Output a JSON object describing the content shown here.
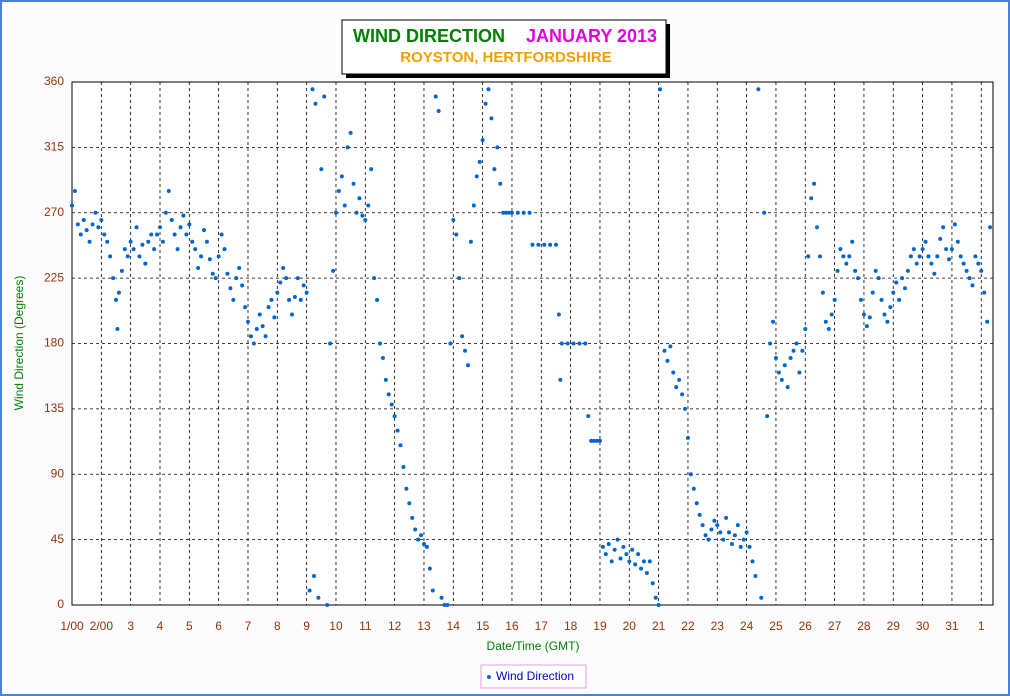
{
  "chart_data": {
    "type": "scatter",
    "title": "WIND DIRECTION",
    "title_month": "JANUARY 2013",
    "subtitle": "ROYSTON, HERTFORDSHIRE",
    "xlabel": "Date/Time (GMT)",
    "ylabel": "Wind Direction (Degrees)",
    "xlim": [
      1,
      32.4
    ],
    "ylim": [
      0,
      360
    ],
    "xticks": [
      {
        "value": 1,
        "label": "1/00"
      },
      {
        "value": 2,
        "label": "2/00"
      },
      3,
      4,
      5,
      6,
      7,
      8,
      9,
      10,
      11,
      12,
      13,
      14,
      15,
      16,
      17,
      18,
      19,
      20,
      21,
      22,
      23,
      24,
      25,
      26,
      27,
      28,
      29,
      30,
      31,
      {
        "value": 32,
        "label": "1"
      }
    ],
    "yticks": [
      0,
      45,
      90,
      135,
      180,
      225,
      270,
      315,
      360
    ],
    "grid": true,
    "legend": "bottom",
    "x": [
      1.0,
      1.1,
      1.2,
      1.3,
      1.4,
      1.5,
      1.6,
      1.7,
      1.8,
      1.9,
      2.0,
      2.1,
      2.2,
      2.3,
      2.4,
      2.5,
      2.55,
      2.6,
      2.7,
      2.8,
      2.9,
      3.0,
      3.1,
      3.2,
      3.3,
      3.4,
      3.5,
      3.6,
      3.7,
      3.8,
      3.9,
      4.0,
      4.1,
      4.2,
      4.3,
      4.4,
      4.5,
      4.6,
      4.7,
      4.8,
      4.9,
      5.0,
      5.1,
      5.2,
      5.3,
      5.4,
      5.5,
      5.6,
      5.7,
      5.8,
      5.9,
      6.0,
      6.1,
      6.2,
      6.3,
      6.4,
      6.5,
      6.6,
      6.7,
      6.8,
      6.9,
      7.0,
      7.1,
      7.2,
      7.3,
      7.4,
      7.5,
      7.6,
      7.7,
      7.8,
      7.9,
      8.0,
      8.1,
      8.2,
      8.3,
      8.4,
      8.5,
      8.6,
      8.7,
      8.8,
      8.9,
      9.0,
      9.1,
      9.2,
      9.25,
      9.3,
      9.4,
      9.5,
      9.6,
      9.7,
      9.8,
      9.9,
      10.0,
      10.1,
      10.2,
      10.3,
      10.4,
      10.5,
      10.6,
      10.7,
      10.8,
      10.9,
      11.0,
      11.1,
      11.2,
      11.3,
      11.4,
      11.5,
      11.6,
      11.7,
      11.8,
      11.9,
      12.0,
      12.1,
      12.2,
      12.3,
      12.4,
      12.5,
      12.6,
      12.7,
      12.8,
      12.9,
      13.0,
      13.1,
      13.2,
      13.3,
      13.4,
      13.5,
      13.6,
      13.7,
      13.8,
      13.9,
      14.0,
      14.1,
      14.2,
      14.3,
      14.4,
      14.5,
      14.6,
      14.7,
      14.8,
      14.9,
      15.0,
      15.1,
      15.2,
      15.3,
      15.4,
      15.5,
      15.6,
      15.7,
      15.8,
      15.9,
      16.0,
      16.2,
      16.4,
      16.6,
      16.7,
      16.9,
      17.1,
      17.3,
      17.5,
      17.6,
      17.65,
      17.7,
      17.9,
      18.1,
      18.3,
      18.5,
      18.6,
      18.7,
      18.8,
      18.9,
      19.0,
      19.1,
      19.2,
      19.3,
      19.4,
      19.5,
      19.6,
      19.7,
      19.8,
      19.9,
      20.0,
      20.1,
      20.2,
      20.3,
      20.4,
      20.5,
      20.6,
      20.7,
      20.8,
      20.9,
      21.0,
      21.05,
      21.2,
      21.3,
      21.4,
      21.5,
      21.6,
      21.7,
      21.8,
      21.9,
      22.0,
      22.1,
      22.2,
      22.3,
      22.4,
      22.5,
      22.6,
      22.7,
      22.8,
      22.9,
      23.0,
      23.1,
      23.2,
      23.3,
      23.4,
      23.5,
      23.6,
      23.7,
      23.8,
      23.9,
      24.0,
      24.1,
      24.2,
      24.3,
      24.4,
      24.5,
      24.6,
      24.7,
      24.8,
      24.9,
      25.0,
      25.1,
      25.2,
      25.3,
      25.4,
      25.5,
      25.6,
      25.7,
      25.8,
      25.9,
      26.0,
      26.1,
      26.2,
      26.3,
      26.4,
      26.5,
      26.6,
      26.7,
      26.8,
      26.9,
      27.0,
      27.1,
      27.2,
      27.3,
      27.4,
      27.5,
      27.6,
      27.7,
      27.8,
      27.9,
      28.0,
      28.1,
      28.2,
      28.3,
      28.4,
      28.5,
      28.6,
      28.7,
      28.8,
      28.9,
      29.0,
      29.1,
      29.2,
      29.3,
      29.4,
      29.5,
      29.6,
      29.7,
      29.8,
      29.9,
      30.0,
      30.1,
      30.2,
      30.3,
      30.4,
      30.5,
      30.6,
      30.7,
      30.8,
      30.9,
      31.0,
      31.1,
      31.2,
      31.3,
      31.4,
      31.5,
      31.6,
      31.7,
      31.8,
      31.9,
      32.0,
      32.1,
      32.2,
      32.3
    ],
    "series": [
      {
        "name": "Wind Direction",
        "color": "#0066cc",
        "values": [
          275,
          285,
          262,
          255,
          265,
          258,
          250,
          262,
          270,
          260,
          265,
          255,
          250,
          240,
          225,
          210,
          190,
          215,
          230,
          245,
          240,
          250,
          245,
          260,
          240,
          248,
          235,
          250,
          255,
          245,
          255,
          260,
          250,
          270,
          285,
          265,
          255,
          245,
          260,
          268,
          255,
          262,
          250,
          245,
          232,
          240,
          258,
          250,
          238,
          228,
          225,
          240,
          255,
          245,
          228,
          218,
          210,
          225,
          232,
          220,
          205,
          195,
          185,
          180,
          190,
          200,
          192,
          185,
          205,
          210,
          198,
          215,
          222,
          232,
          225,
          210,
          200,
          212,
          225,
          210,
          220,
          215,
          10,
          355,
          20,
          345,
          5,
          300,
          350,
          0,
          180,
          230,
          270,
          285,
          295,
          275,
          315,
          325,
          290,
          270,
          280,
          268,
          265,
          275,
          300,
          225,
          210,
          180,
          170,
          155,
          145,
          138,
          130,
          120,
          110,
          95,
          80,
          70,
          60,
          52,
          45,
          48,
          42,
          40,
          25,
          10,
          350,
          340,
          5,
          0,
          0,
          180,
          265,
          255,
          225,
          185,
          175,
          165,
          250,
          275,
          295,
          305,
          320,
          345,
          355,
          335,
          300,
          315,
          290,
          270,
          270,
          270,
          270,
          270,
          270,
          270,
          248,
          248,
          248,
          248,
          248,
          200,
          155,
          180,
          180,
          180,
          180,
          180,
          130,
          113,
          113,
          113,
          113,
          40,
          35,
          42,
          30,
          38,
          45,
          32,
          40,
          35,
          30,
          38,
          28,
          35,
          25,
          30,
          22,
          30,
          15,
          5,
          0,
          355,
          175,
          168,
          178,
          160,
          150,
          155,
          145,
          135,
          115,
          90,
          80,
          70,
          62,
          55,
          48,
          45,
          52,
          58,
          55,
          50,
          45,
          60,
          50,
          42,
          48,
          55,
          40,
          45,
          50,
          40,
          30,
          20,
          355,
          5,
          270,
          130,
          180,
          195,
          170,
          160,
          155,
          165,
          150,
          170,
          175,
          180,
          160,
          175,
          190,
          240,
          280,
          290,
          260,
          240,
          215,
          195,
          190,
          200,
          210,
          230,
          245,
          240,
          235,
          240,
          250,
          230,
          225,
          210,
          200,
          192,
          198,
          215,
          230,
          225,
          210,
          200,
          195,
          205,
          215,
          222,
          210,
          225,
          218,
          230,
          240,
          245,
          235,
          240,
          245,
          250,
          240,
          235,
          228,
          240,
          252,
          260,
          245,
          238,
          245,
          262,
          250,
          240,
          235,
          230,
          225,
          220,
          240,
          235,
          230,
          215,
          195,
          260
        ]
      }
    ]
  }
}
